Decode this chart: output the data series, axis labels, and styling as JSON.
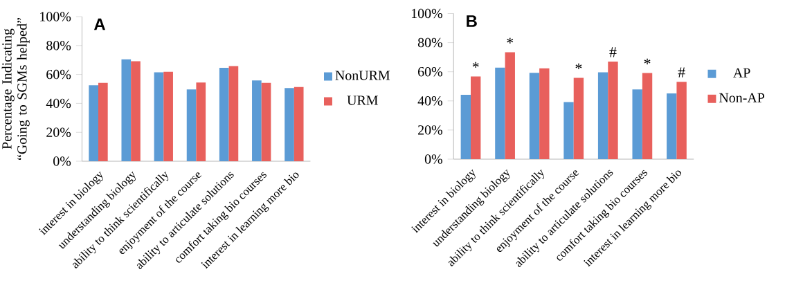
{
  "chart_data": [
    {
      "type": "bar",
      "title": "A",
      "ylabel": "Percentage Indicating “Going to SGMs helped”",
      "categories": [
        "interest in biology",
        "understanding biology",
        "ability to think scientifically",
        "enjoyment of the course",
        "ability to articulate solutions",
        "comfort taking bio courses",
        "interest in learning more bio"
      ],
      "series": [
        {
          "name": "NonURM",
          "color": "#5b9bd5",
          "values": [
            52.5,
            70.4,
            61.5,
            49.6,
            64.6,
            55.9,
            50.6
          ]
        },
        {
          "name": "URM",
          "color": "#e8605c",
          "values": [
            54.2,
            69.2,
            61.9,
            54.4,
            65.8,
            54.2,
            51.3
          ]
        }
      ],
      "ylim": [
        0,
        100
      ],
      "yticks": [
        {
          "value": 0,
          "label": "0%"
        },
        {
          "value": 20,
          "label": "20%"
        },
        {
          "value": 40,
          "label": "40%"
        },
        {
          "value": 60,
          "label": "60%"
        },
        {
          "value": 80,
          "label": "80%"
        },
        {
          "value": 100,
          "label": "100%"
        }
      ],
      "legend": "right",
      "grid": false
    },
    {
      "type": "bar",
      "title": "B",
      "categories": [
        "interest in biology",
        "understanding biology",
        "ability to think scientifically",
        "enjoyment of the course",
        "ability to articulate solutions",
        "comfort taking bio courses",
        "interest in learning more bio"
      ],
      "series": [
        {
          "name": "AP",
          "color": "#5b9bd5",
          "values": [
            44.2,
            62.8,
            59.3,
            39.2,
            59.6,
            47.9,
            45.1
          ]
        },
        {
          "name": "Non-AP",
          "color": "#e8605c",
          "values": [
            56.8,
            73.4,
            62.4,
            55.8,
            67.0,
            59.1,
            53.1
          ]
        }
      ],
      "ylim": [
        0,
        100
      ],
      "yticks": [
        {
          "value": 0,
          "label": "0%"
        },
        {
          "value": 20,
          "label": "20%"
        },
        {
          "value": 40,
          "label": "40%"
        },
        {
          "value": 60,
          "label": "60%"
        },
        {
          "value": 80,
          "label": "80%"
        },
        {
          "value": 100,
          "label": "100%"
        }
      ],
      "annotations": [
        {
          "text": "*",
          "x": "interest in biology",
          "y": 56.8
        },
        {
          "text": "*",
          "x": "understanding biology",
          "y": 73.4
        },
        {
          "text": "*",
          "x": "enjoyment of the course",
          "y": 55.8
        },
        {
          "text": "#",
          "x": "ability to articulate solutions",
          "y": 67.0
        },
        {
          "text": "*",
          "x": "comfort taking bio courses",
          "y": 59.1
        },
        {
          "text": "#",
          "x": "interest in learning more bio",
          "y": 53.1
        }
      ],
      "legend": "right",
      "grid": false
    }
  ]
}
